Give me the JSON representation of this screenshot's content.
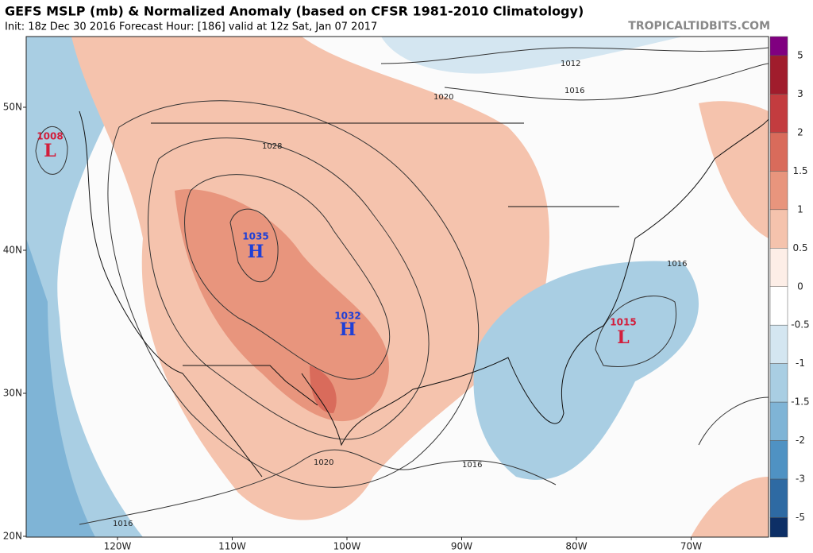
{
  "header": {
    "title": "GEFS MSLP (mb) & Normalized Anomaly (based on CFSR 1981-2010 Climatology)",
    "subtitle": "Init: 18z Dec 30 2016   Forecast Hour: [186]   valid at 12z Sat, Jan 07 2017",
    "watermark": "TROPICALTIDBITS.COM"
  },
  "map": {
    "lat_labels": [
      "50N",
      "40N",
      "30N",
      "20N"
    ],
    "lon_labels": [
      "120W",
      "110W",
      "100W",
      "90W",
      "80W",
      "70W"
    ],
    "centers": [
      {
        "value": "1008",
        "type": "L"
      },
      {
        "value": "1035",
        "type": "H"
      },
      {
        "value": "1032",
        "type": "H"
      },
      {
        "value": "1015",
        "type": "L"
      }
    ],
    "contour_labels": [
      "1012",
      "1016",
      "1020",
      "1028",
      "1016",
      "1020",
      "1016",
      "1016"
    ]
  },
  "colorbar": {
    "labels": [
      5,
      3,
      2,
      1.5,
      1,
      0.5,
      0,
      -0.5,
      -1,
      -1.5,
      -2,
      -3,
      -5
    ],
    "colors": [
      "#800080",
      "#a01c2c",
      "#c33c3f",
      "#d96b5b",
      "#e8957d",
      "#f5c3ad",
      "#fdeee7",
      "#ffffff",
      "#d4e6f1",
      "#a9cee3",
      "#7fb4d6",
      "#4f92c3",
      "#2e6aa3",
      "#0d2f66"
    ]
  }
}
